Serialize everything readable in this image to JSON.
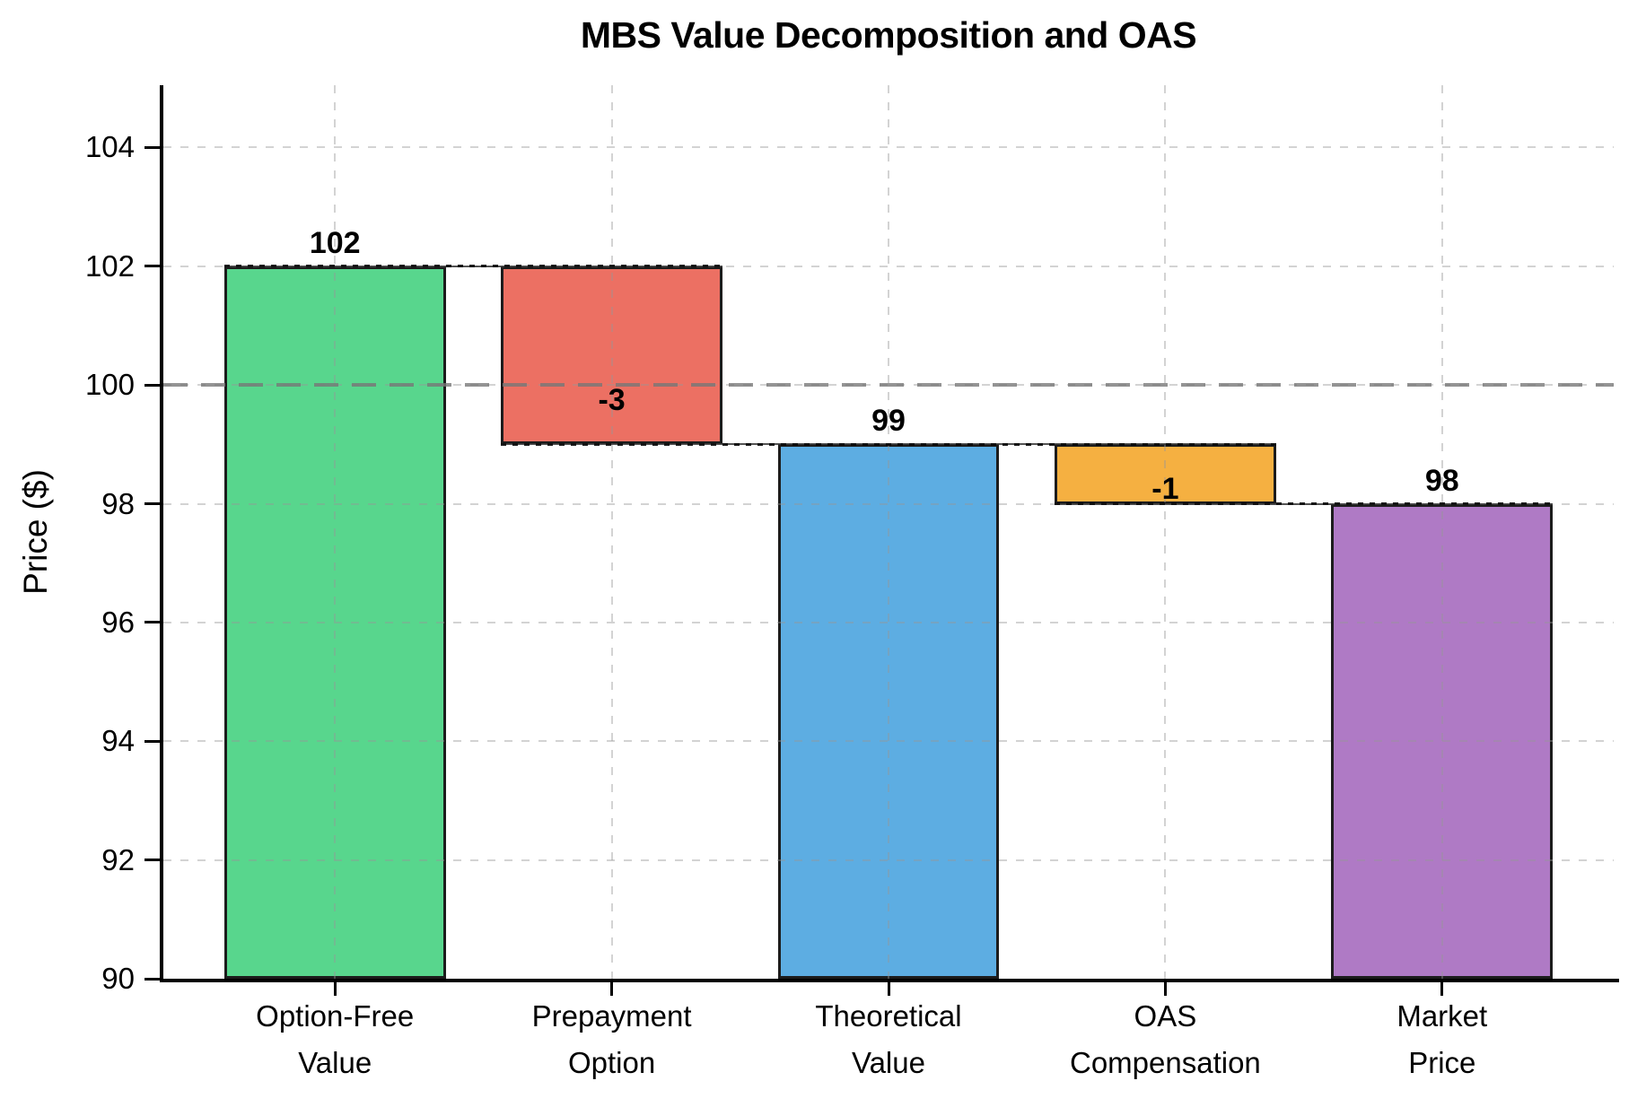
{
  "title": "MBS Value Decomposition and OAS",
  "y_axis": {
    "label": "Price ($)",
    "tick_labels": [
      "90",
      "92",
      "94",
      "96",
      "98",
      "100",
      "102",
      "104"
    ]
  },
  "chart_data": {
    "type": "bar",
    "subtype": "waterfall",
    "title": "MBS Value Decomposition and OAS",
    "xlabel": "",
    "ylabel": "Price ($)",
    "ylim": [
      90,
      105.05
    ],
    "yticks": [
      90,
      92,
      94,
      96,
      98,
      100,
      102,
      104
    ],
    "grid": true,
    "reference_line": 100,
    "categories": [
      "Option-Free Value",
      "Prepayment Option",
      "Theoretical Value",
      "OAS Compensation",
      "Market Price"
    ],
    "values": [
      102,
      -3,
      99,
      -1,
      98
    ],
    "bars": [
      {
        "category_lines": [
          "Option-Free",
          "Value"
        ],
        "from": 90,
        "to": 102,
        "value_label": "102",
        "label_pos": "above",
        "color": "#58D68D"
      },
      {
        "category_lines": [
          "Prepayment",
          "Option"
        ],
        "from": 99,
        "to": 102,
        "value_label": "-3",
        "label_pos": "inside-bottom",
        "color": "#EC7063"
      },
      {
        "category_lines": [
          "Theoretical",
          "Value"
        ],
        "from": 90,
        "to": 99,
        "value_label": "99",
        "label_pos": "above",
        "color": "#5DADE2"
      },
      {
        "category_lines": [
          "OAS",
          "Compensation"
        ],
        "from": 98,
        "to": 99,
        "value_label": "-1",
        "label_pos": "inside-bottom",
        "color": "#F5B041"
      },
      {
        "category_lines": [
          "Market",
          "Price"
        ],
        "from": 90,
        "to": 98,
        "value_label": "98",
        "label_pos": "above",
        "color": "#AF7AC5"
      }
    ],
    "connectors": [
      {
        "level": 102,
        "from_bar": 0,
        "to_bar": 1
      },
      {
        "level": 99,
        "from_bar": 1,
        "to_bar": 3
      },
      {
        "level": 98,
        "from_bar": 3,
        "to_bar": 4
      }
    ],
    "colors": {
      "increase": "#58D68D",
      "decrease": "#EC7063",
      "subtotal_blue": "#5DADE2",
      "oas_orange": "#F5B041",
      "market_purple": "#AF7AC5",
      "bar_border": "#1c1c1c",
      "reference_line": "#767676",
      "gridline": "#969696"
    }
  }
}
